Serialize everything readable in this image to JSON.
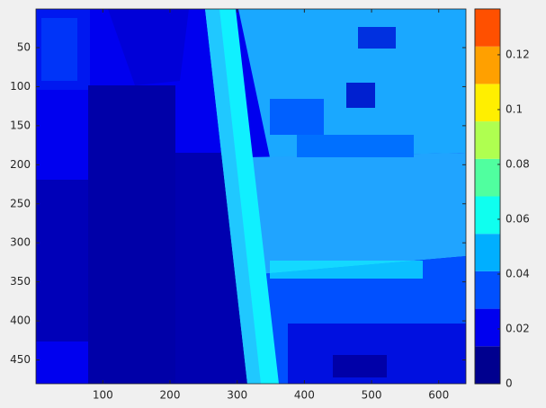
{
  "chart_data": {
    "type": "heatmap",
    "xlim": [
      0.5,
      640.5
    ],
    "ylim": [
      0.5,
      480.5
    ],
    "y_reversed": true,
    "xticks": [
      100,
      200,
      300,
      400,
      500,
      600
    ],
    "yticks": [
      50,
      100,
      150,
      200,
      250,
      300,
      350,
      400,
      450
    ],
    "colorbar": {
      "clim": [
        0,
        0.1367
      ],
      "ticks": [
        0,
        0.02,
        0.04,
        0.06,
        0.08,
        0.1,
        0.12
      ],
      "colors": [
        "#00008f",
        "#0000ef",
        "#0050ff",
        "#00afff",
        "#0fffef",
        "#50ff9f",
        "#afff50",
        "#ffef00",
        "#ffa000",
        "#ff5000"
      ]
    }
  }
}
